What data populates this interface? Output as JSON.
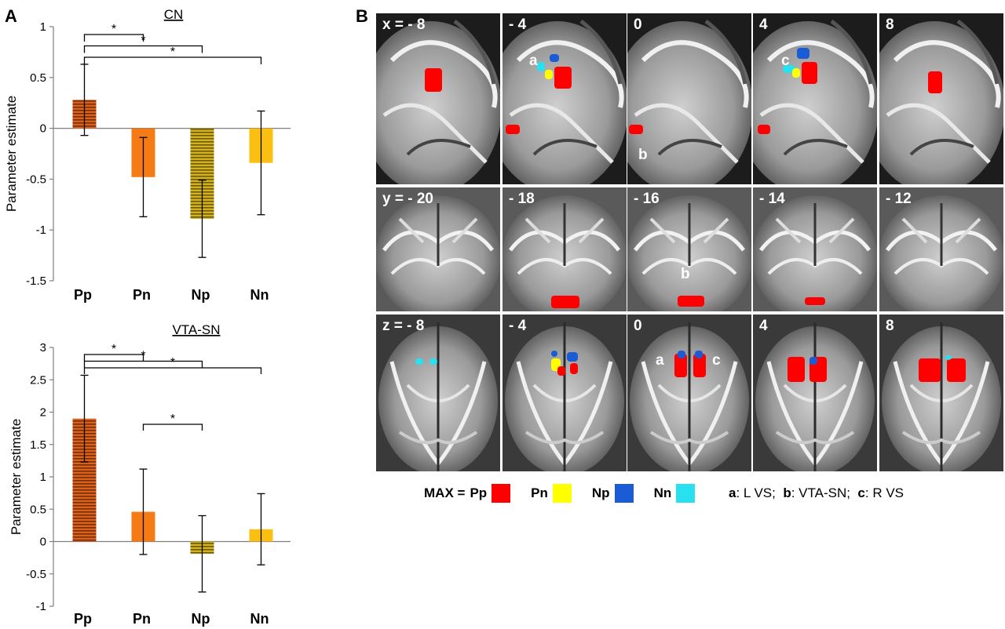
{
  "panel_a_label": "A",
  "panel_b_label": "B",
  "colors": {
    "Pp": "#d9621e",
    "Pn": "#f47b16",
    "Np": "#b8a01e",
    "Nn": "#fbbf12",
    "map_Pp": "#ff0000",
    "map_Pn": "#ffff00",
    "map_Np": "#1a5bd6",
    "map_Nn": "#29e0f0"
  },
  "chart_data": [
    {
      "type": "bar",
      "title": "CN",
      "ylabel": "Parameter estimate",
      "categories": [
        "Pp",
        "Pn",
        "Np",
        "Nn"
      ],
      "values": [
        0.28,
        -0.48,
        -0.89,
        -0.34
      ],
      "error": [
        0.35,
        0.39,
        0.38,
        0.51
      ],
      "ylim": [
        -1.5,
        1
      ],
      "yticks": [
        "1",
        "0.5",
        "0",
        "-0.5",
        "-1",
        "-1.5"
      ],
      "ytick_values": [
        1,
        0.5,
        0,
        -0.5,
        -1,
        -1.5
      ],
      "significance": [
        {
          "from": "Pp",
          "to": "Pn",
          "label": "*"
        },
        {
          "from": "Pp",
          "to": "Np",
          "label": "*"
        },
        {
          "from": "Pp",
          "to": "Nn",
          "label": "*"
        }
      ]
    },
    {
      "type": "bar",
      "title": "VTA-SN",
      "ylabel": "Parameter  estimate",
      "categories": [
        "Pp",
        "Pn",
        "Np",
        "Nn"
      ],
      "values": [
        1.9,
        0.46,
        -0.19,
        0.19
      ],
      "error": [
        0.67,
        0.66,
        0.59,
        0.55
      ],
      "ylim": [
        -1,
        3
      ],
      "yticks": [
        "3",
        "2.5",
        "2",
        "1.5",
        "1",
        "0.5",
        "0",
        "-0.5",
        "-1"
      ],
      "ytick_values": [
        3,
        2.5,
        2,
        1.5,
        1,
        0.5,
        0,
        -0.5,
        -1
      ],
      "significance": [
        {
          "from": "Pp",
          "to": "Pn",
          "label": "*"
        },
        {
          "from": "Pp",
          "to": "Np",
          "label": "*"
        },
        {
          "from": "Pp",
          "to": "Nn",
          "label": "*"
        },
        {
          "from": "Pn",
          "to": "Np",
          "label": "*"
        }
      ]
    }
  ],
  "brain_rows": [
    {
      "view": "sagittal",
      "labels": [
        "x = - 8",
        "- 4",
        "0",
        "4",
        "8"
      ],
      "letters": [
        [],
        [
          "a"
        ],
        [
          "b"
        ],
        [
          "c"
        ],
        []
      ]
    },
    {
      "view": "coronal",
      "labels": [
        "y = - 20",
        "- 18",
        "- 16",
        "- 14",
        "- 12"
      ],
      "letters": [
        [],
        [],
        [
          "b"
        ],
        [],
        []
      ]
    },
    {
      "view": "axial",
      "labels": [
        "z = - 8",
        "- 4",
        "0",
        "4",
        "8"
      ],
      "letters": [
        [],
        [],
        [
          "a",
          "c"
        ],
        [],
        []
      ]
    }
  ],
  "legend": {
    "prefix": "MAX = ",
    "items": [
      {
        "label": "Pp",
        "color": "#ff0000"
      },
      {
        "label": "Pn",
        "color": "#ffff00"
      },
      {
        "label": "Np",
        "color": "#1a5bd6"
      },
      {
        "label": "Nn",
        "color": "#29e0f0"
      }
    ]
  },
  "region_notes": [
    {
      "letter": "a",
      "text": ": L VS;  "
    },
    {
      "letter": "b",
      "text": ": VTA-SN;  "
    },
    {
      "letter": "c",
      "text": ": R VS"
    }
  ]
}
